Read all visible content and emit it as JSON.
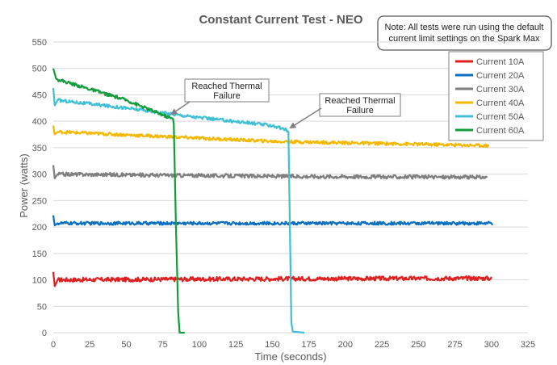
{
  "chart_data": {
    "type": "line",
    "title": "Constant Current Test - NEO",
    "xlabel": "Time (seconds)",
    "ylabel": "Power (watts)",
    "xlim": [
      0,
      325
    ],
    "ylim": [
      0,
      550
    ],
    "x_ticks": [
      "0",
      "25",
      "50",
      "75",
      "100",
      "125",
      "150",
      "175",
      "200",
      "225",
      "250",
      "275",
      "300",
      "325"
    ],
    "y_ticks": [
      "0",
      "50",
      "100",
      "150",
      "200",
      "250",
      "300",
      "350",
      "400",
      "450",
      "500",
      "550"
    ],
    "grid": true,
    "legend_position": "top-right",
    "note": [
      "Note: All tests were run using the default",
      "current limit settings on the Spark Max"
    ],
    "annotations": [
      {
        "lines": [
          "Reached Thermal",
          "Failure"
        ],
        "points_to": [
          83,
          405
        ]
      },
      {
        "lines": [
          "Reached Thermal",
          "Failure"
        ],
        "points_to": [
          161,
          383
        ]
      }
    ],
    "series": [
      {
        "name": "Current 10A",
        "color": "#e02020",
        "points": [
          [
            0,
            115
          ],
          [
            1,
            88
          ],
          [
            3,
            100
          ],
          [
            150,
            102
          ],
          [
            300,
            103
          ]
        ],
        "noise": 4
      },
      {
        "name": "Current 20A",
        "color": "#0b6fc0",
        "points": [
          [
            0,
            222
          ],
          [
            1,
            203
          ],
          [
            3,
            207
          ],
          [
            150,
            207
          ],
          [
            301,
            207
          ]
        ],
        "noise": 3
      },
      {
        "name": "Current 30A",
        "color": "#7f7f7f",
        "points": [
          [
            0,
            317
          ],
          [
            1,
            292
          ],
          [
            3,
            300
          ],
          [
            150,
            296
          ],
          [
            297,
            294
          ]
        ],
        "noise": 3.5
      },
      {
        "name": "Current 40A",
        "color": "#f5b800",
        "points": [
          [
            0,
            392
          ],
          [
            1,
            375
          ],
          [
            3,
            380
          ],
          [
            150,
            362
          ],
          [
            298,
            354
          ]
        ],
        "noise": 3
      },
      {
        "name": "Current 50A",
        "color": "#3fc0d6",
        "points": [
          [
            0,
            463
          ],
          [
            1,
            430
          ],
          [
            3,
            440
          ],
          [
            50,
            425
          ],
          [
            100,
            407
          ],
          [
            150,
            392
          ],
          [
            160,
            383
          ],
          [
            161,
            380
          ],
          [
            162,
            200
          ],
          [
            163,
            20
          ],
          [
            164,
            2
          ],
          [
            172,
            0
          ]
        ],
        "noise": 3,
        "noise_until": 160
      },
      {
        "name": "Current 60A",
        "color": "#139c3c",
        "points": [
          [
            0,
            500
          ],
          [
            2,
            480
          ],
          [
            50,
            440
          ],
          [
            82,
            404
          ],
          [
            82.5,
            395
          ],
          [
            84,
            200
          ],
          [
            85.5,
            40
          ],
          [
            86.5,
            0
          ],
          [
            90,
            0
          ]
        ],
        "noise": 3,
        "noise_until": 82
      }
    ]
  }
}
